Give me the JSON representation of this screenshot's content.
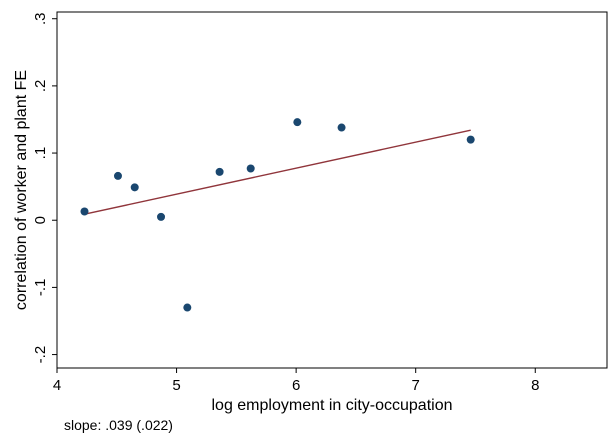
{
  "chart_data": {
    "type": "scatter",
    "title": "",
    "xlabel": "log employment in city-occupation",
    "ylabel": "correlation of worker and plant FE",
    "xlim": [
      4,
      8.6
    ],
    "ylim": [
      -0.22,
      0.31
    ],
    "x_ticks": [
      4,
      5,
      6,
      7,
      8
    ],
    "x_tick_labels": [
      "4",
      "5",
      "6",
      "7",
      "8"
    ],
    "y_ticks": [
      -0.2,
      -0.1,
      0,
      0.1,
      0.2,
      0.3
    ],
    "y_tick_labels": [
      "-.2",
      "-.1",
      "0",
      ".1",
      ".2",
      ".3"
    ],
    "grid": false,
    "points": [
      {
        "x": 4.23,
        "y": 0.013
      },
      {
        "x": 4.51,
        "y": 0.066
      },
      {
        "x": 4.65,
        "y": 0.049
      },
      {
        "x": 4.87,
        "y": 0.005
      },
      {
        "x": 5.09,
        "y": -0.13
      },
      {
        "x": 5.36,
        "y": 0.072
      },
      {
        "x": 5.62,
        "y": 0.077
      },
      {
        "x": 6.01,
        "y": 0.146
      },
      {
        "x": 6.38,
        "y": 0.138
      },
      {
        "x": 7.46,
        "y": 0.12
      }
    ],
    "fit_line": {
      "x": [
        4.23,
        7.46
      ],
      "y": [
        0.009,
        0.134
      ]
    },
    "point_color": "#1a476f",
    "line_color": "#90353b",
    "note": "slope: .039 (.022)"
  }
}
